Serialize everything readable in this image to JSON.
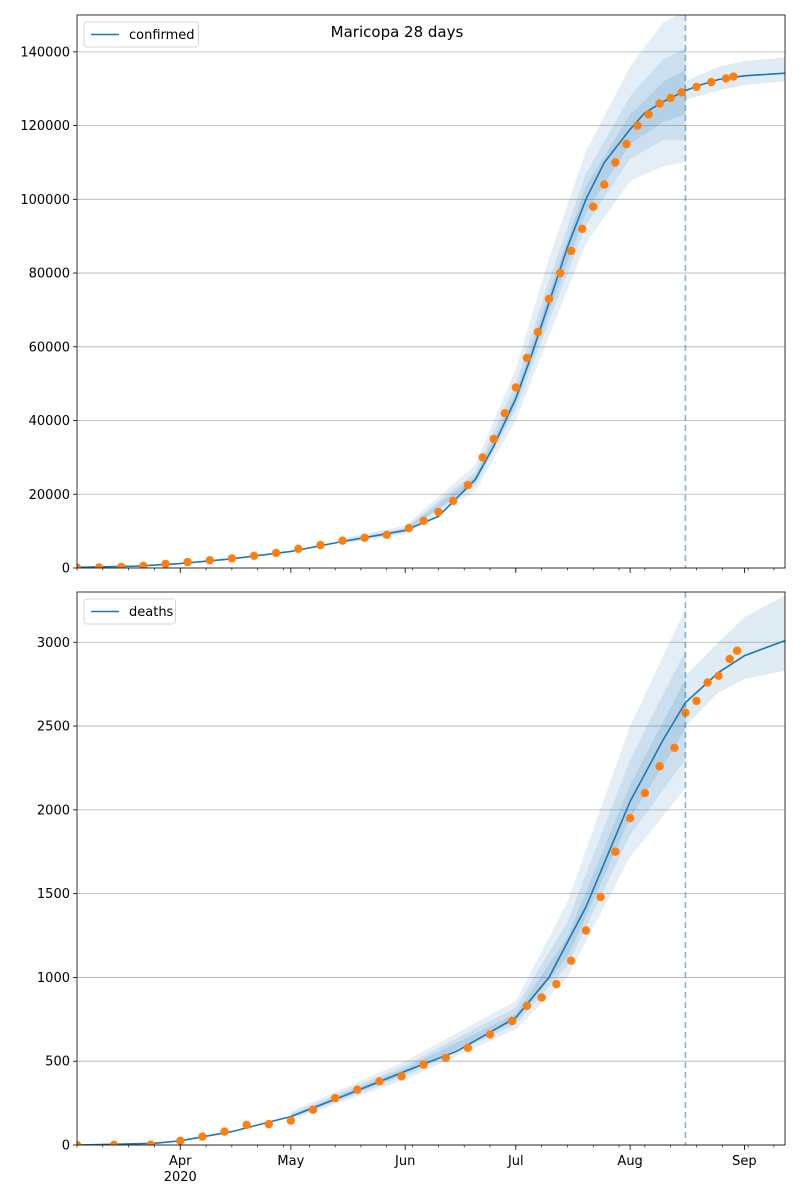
{
  "figure_title": "Maricopa 28 days",
  "chart_data": [
    {
      "type": "line",
      "legend": [
        "confirmed"
      ],
      "legend_position": "top-left",
      "grid": "horizontal",
      "ylim": [
        0,
        150000
      ],
      "xlim": [
        "2020-03-04",
        "2020-09-12"
      ],
      "yticks": [
        0,
        20000,
        40000,
        60000,
        80000,
        100000,
        120000,
        140000
      ],
      "ytick_labels": [
        "0",
        "20000",
        "40000",
        "60000",
        "80000",
        "100000",
        "120000",
        "140000"
      ],
      "forecast_start": "2020-08-16",
      "fit": {
        "x": [
          "2020-03-04",
          "2020-03-20",
          "2020-04-01",
          "2020-04-15",
          "2020-05-01",
          "2020-05-15",
          "2020-06-01",
          "2020-06-10",
          "2020-06-20",
          "2020-06-25",
          "2020-07-01",
          "2020-07-05",
          "2020-07-10",
          "2020-07-15",
          "2020-07-20",
          "2020-07-25",
          "2020-08-01",
          "2020-08-05",
          "2020-08-10",
          "2020-08-16",
          "2020-08-20",
          "2020-08-25",
          "2020-09-01",
          "2020-09-12"
        ],
        "y": [
          200,
          500,
          1200,
          2500,
          4500,
          7200,
          10200,
          14000,
          24000,
          33000,
          46000,
          57000,
          72000,
          87000,
          100000,
          110000,
          119000,
          123500,
          126500,
          129500,
          131000,
          132500,
          133500,
          134200
        ]
      },
      "bands": [
        {
          "x": [
            "2020-05-15",
            "2020-06-01",
            "2020-06-20",
            "2020-07-01",
            "2020-07-10",
            "2020-07-20",
            "2020-08-01",
            "2020-08-10",
            "2020-08-16"
          ],
          "lower": [
            6500,
            9200,
            21000,
            40000,
            63000,
            88000,
            105000,
            109000,
            110000
          ],
          "upper": [
            8000,
            11500,
            28000,
            54000,
            84000,
            113000,
            136000,
            148000,
            151000
          ]
        },
        {
          "x": [
            "2020-05-15",
            "2020-06-01",
            "2020-06-20",
            "2020-07-01",
            "2020-07-10",
            "2020-07-20",
            "2020-08-01",
            "2020-08-10",
            "2020-08-16"
          ],
          "lower": [
            6800,
            9600,
            22500,
            43000,
            67000,
            93000,
            111000,
            116000,
            116000
          ],
          "upper": [
            7700,
            10900,
            26000,
            50000,
            78000,
            107000,
            128000,
            138000,
            141000
          ]
        },
        {
          "x": [
            "2020-05-15",
            "2020-06-01",
            "2020-06-20",
            "2020-07-01",
            "2020-07-10",
            "2020-07-20",
            "2020-08-01",
            "2020-08-10",
            "2020-08-16"
          ],
          "lower": [
            7000,
            9900,
            23200,
            44500,
            69500,
            96500,
            115000,
            121000,
            123000
          ],
          "upper": [
            7400,
            10500,
            24800,
            47500,
            74500,
            103500,
            123000,
            132000,
            135000
          ]
        },
        {
          "x": [
            "2020-08-16",
            "2020-08-25",
            "2020-09-01",
            "2020-09-12"
          ],
          "lower": [
            127000,
            129500,
            131000,
            132000
          ],
          "upper": [
            132000,
            136000,
            137500,
            138500
          ]
        }
      ],
      "observed": {
        "x": [
          "2020-03-04",
          "2020-03-10",
          "2020-03-16",
          "2020-03-22",
          "2020-03-28",
          "2020-04-03",
          "2020-04-09",
          "2020-04-15",
          "2020-04-21",
          "2020-04-27",
          "2020-05-03",
          "2020-05-09",
          "2020-05-15",
          "2020-05-21",
          "2020-05-27",
          "2020-06-02",
          "2020-06-06",
          "2020-06-10",
          "2020-06-14",
          "2020-06-18",
          "2020-06-22",
          "2020-06-25",
          "2020-06-28",
          "2020-07-01",
          "2020-07-04",
          "2020-07-07",
          "2020-07-10",
          "2020-07-13",
          "2020-07-16",
          "2020-07-19",
          "2020-07-22",
          "2020-07-25",
          "2020-07-28",
          "2020-07-31",
          "2020-08-03",
          "2020-08-06",
          "2020-08-09",
          "2020-08-12",
          "2020-08-15",
          "2020-08-19",
          "2020-08-23",
          "2020-08-27",
          "2020-08-29"
        ],
        "y": [
          100,
          150,
          300,
          600,
          1100,
          1600,
          2100,
          2600,
          3300,
          4100,
          5200,
          6200,
          7400,
          8200,
          9000,
          10800,
          12800,
          15200,
          18200,
          22500,
          30000,
          35000,
          42000,
          49000,
          57000,
          64000,
          73000,
          80000,
          86000,
          92000,
          98000,
          104000,
          110000,
          115000,
          120000,
          123000,
          126000,
          127500,
          129000,
          130500,
          131800,
          132800,
          133300
        ]
      }
    },
    {
      "type": "line",
      "legend": [
        "deaths"
      ],
      "legend_position": "top-left",
      "grid": "horizontal",
      "ylim": [
        0,
        3300
      ],
      "xlim": [
        "2020-03-04",
        "2020-09-12"
      ],
      "yticks": [
        0,
        500,
        1000,
        1500,
        2000,
        2500,
        3000
      ],
      "ytick_labels": [
        "0",
        "500",
        "1000",
        "1500",
        "2000",
        "2500",
        "3000"
      ],
      "xtick_labels": [
        "Apr\n2020",
        "May",
        "Jun",
        "Jul",
        "Aug",
        "Sep"
      ],
      "xticks": [
        "2020-04-01",
        "2020-05-01",
        "2020-06-01",
        "2020-07-01",
        "2020-08-01",
        "2020-09-01"
      ],
      "forecast_start": "2020-08-16",
      "fit": {
        "x": [
          "2020-03-04",
          "2020-03-25",
          "2020-04-01",
          "2020-04-15",
          "2020-05-01",
          "2020-05-15",
          "2020-06-01",
          "2020-06-15",
          "2020-07-01",
          "2020-07-10",
          "2020-07-20",
          "2020-08-01",
          "2020-08-10",
          "2020-08-16",
          "2020-08-25",
          "2020-09-01",
          "2020-09-12"
        ],
        "y": [
          0,
          10,
          25,
          80,
          170,
          290,
          440,
          560,
          760,
          1000,
          1420,
          2050,
          2420,
          2640,
          2820,
          2920,
          3010
        ]
      },
      "bands": [
        {
          "x": [
            "2020-05-01",
            "2020-06-01",
            "2020-07-01",
            "2020-07-15",
            "2020-08-01",
            "2020-08-16"
          ],
          "lower": [
            150,
            390,
            690,
            1000,
            1720,
            2130
          ],
          "upper": [
            200,
            500,
            860,
            1450,
            2500,
            3200
          ]
        },
        {
          "x": [
            "2020-05-01",
            "2020-06-01",
            "2020-07-01",
            "2020-07-15",
            "2020-08-01",
            "2020-08-16"
          ],
          "lower": [
            158,
            410,
            720,
            1070,
            1850,
            2300
          ],
          "upper": [
            188,
            475,
            820,
            1330,
            2300,
            2950
          ]
        },
        {
          "x": [
            "2020-05-01",
            "2020-06-01",
            "2020-07-01",
            "2020-07-15",
            "2020-08-01",
            "2020-08-16"
          ],
          "lower": [
            164,
            425,
            740,
            1120,
            1950,
            2480
          ],
          "upper": [
            178,
            458,
            785,
            1240,
            2150,
            2780
          ]
        },
        {
          "x": [
            "2020-08-16",
            "2020-08-25",
            "2020-09-01",
            "2020-09-12"
          ],
          "lower": [
            2500,
            2700,
            2780,
            2830
          ],
          "upper": [
            2800,
            3000,
            3150,
            3280
          ]
        }
      ],
      "observed": {
        "x": [
          "2020-03-04",
          "2020-03-14",
          "2020-03-24",
          "2020-04-01",
          "2020-04-07",
          "2020-04-13",
          "2020-04-19",
          "2020-04-25",
          "2020-05-01",
          "2020-05-07",
          "2020-05-13",
          "2020-05-19",
          "2020-05-25",
          "2020-05-31",
          "2020-06-06",
          "2020-06-12",
          "2020-06-18",
          "2020-06-24",
          "2020-06-30",
          "2020-07-04",
          "2020-07-08",
          "2020-07-12",
          "2020-07-16",
          "2020-07-20",
          "2020-07-24",
          "2020-07-28",
          "2020-08-01",
          "2020-08-05",
          "2020-08-09",
          "2020-08-13",
          "2020-08-16",
          "2020-08-19",
          "2020-08-22",
          "2020-08-25",
          "2020-08-28",
          "2020-08-30"
        ],
        "y": [
          0,
          0,
          2,
          25,
          50,
          80,
          120,
          125,
          145,
          210,
          280,
          330,
          380,
          410,
          480,
          520,
          580,
          660,
          740,
          830,
          880,
          960,
          1100,
          1280,
          1480,
          1750,
          1950,
          2100,
          2260,
          2370,
          2580,
          2650,
          2760,
          2800,
          2900,
          2950
        ]
      }
    }
  ]
}
